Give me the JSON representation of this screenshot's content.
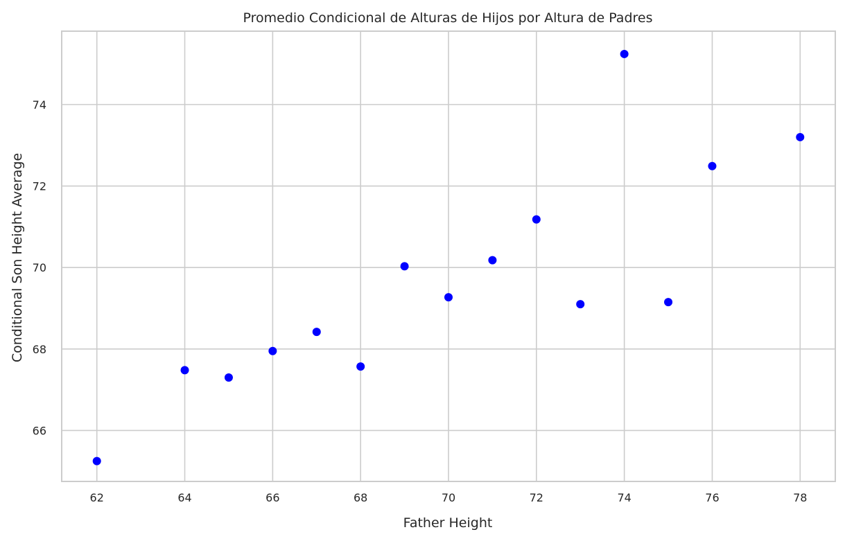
{
  "chart_data": {
    "type": "scatter",
    "title": "Promedio Condicional de Alturas de Hijos por Altura de Padres",
    "xlabel": "Father Height",
    "ylabel": "Conditional Son Height Average",
    "xlim": [
      61.2,
      78.8
    ],
    "ylim": [
      64.75,
      75.8
    ],
    "xticks": [
      62,
      64,
      66,
      68,
      70,
      72,
      74,
      76,
      78
    ],
    "yticks": [
      66,
      68,
      70,
      72,
      74
    ],
    "grid": true,
    "marker_color": "#0000ff",
    "x": [
      62,
      64,
      65,
      66,
      67,
      68,
      69,
      70,
      71,
      72,
      73,
      74,
      75,
      76,
      78
    ],
    "y": [
      65.25,
      67.48,
      67.3,
      67.95,
      68.42,
      67.57,
      70.03,
      69.27,
      70.18,
      71.18,
      69.1,
      75.24,
      69.15,
      72.49,
      73.2
    ]
  }
}
